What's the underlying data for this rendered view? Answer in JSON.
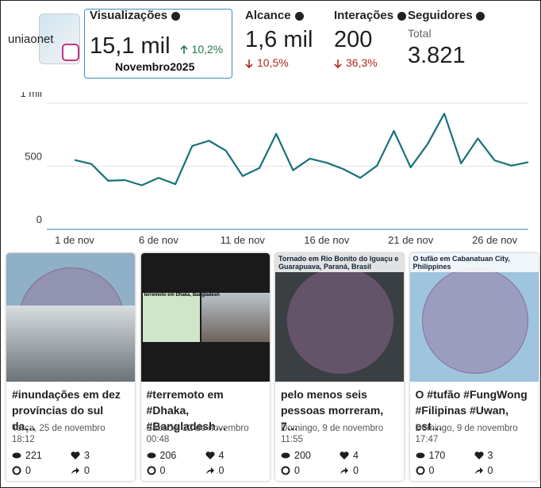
{
  "header": {
    "account": "uniaonet",
    "period": "Novembro2025"
  },
  "metrics": [
    {
      "label": "Visualizações",
      "value": "15,1 mil",
      "change": "10,2%",
      "trend": "up"
    },
    {
      "label": "Alcance",
      "value": "1,6 mil",
      "change": "10,5%",
      "trend": "down"
    },
    {
      "label": "Interações",
      "value": "200",
      "change": "36,3%",
      "trend": "down"
    }
  ],
  "followers": {
    "label": "Seguidores",
    "sublabel": "Total",
    "value": "3.821"
  },
  "chart_data": {
    "type": "line",
    "color": "#17727a",
    "categories": [
      "1 de nov",
      null,
      null,
      null,
      null,
      "6 de nov",
      null,
      null,
      null,
      null,
      "11 de nov",
      null,
      null,
      null,
      null,
      "16 de nov",
      null,
      null,
      null,
      null,
      "21 de nov",
      null,
      null,
      null,
      null,
      "26 de nov",
      null,
      null
    ],
    "values": [
      550,
      518,
      385,
      390,
      349,
      408,
      358,
      661,
      702,
      624,
      422,
      486,
      757,
      468,
      560,
      528,
      477,
      408,
      505,
      780,
      491,
      674,
      917,
      523,
      720,
      546,
      505,
      532
    ],
    "ylim": [
      0,
      1000
    ],
    "yticks": [
      0,
      500,
      {
        "value": 1000,
        "label": "1 mil"
      }
    ],
    "grid": true
  },
  "posts": [
    {
      "overlay": null,
      "caption": "#inundações em dez províncias do sul da…",
      "date": "Terça, 25 de novembro 18:12",
      "views": 221,
      "likes": 3,
      "comments": 0,
      "shares": 0
    },
    {
      "overlay": "terremoto em Dhaka, Bangladesh",
      "caption": "#terremoto em #Dhaka, #Bangladesh…",
      "date": "Sábado, 22 de novembro 00:48",
      "views": 206,
      "likes": 4,
      "comments": 0,
      "shares": 0
    },
    {
      "overlay": "Tornado em Rio Bonito do Iguaçu e Guarapuava, Paraná, Brasil",
      "caption": "pelo menos seis pessoas morreram, 7…",
      "date": "Domingo, 9 de novembro 11:55",
      "views": 200,
      "likes": 4,
      "comments": 0,
      "shares": 0
    },
    {
      "overlay": "O tufão em Cabanatuan City, Philippines",
      "caption": "O #tufão #FungWong #Filipinas #Uwan, est…",
      "date": "Domingo, 9 de novembro 17:47",
      "views": 170,
      "likes": 3,
      "comments": 0,
      "shares": 0
    }
  ]
}
